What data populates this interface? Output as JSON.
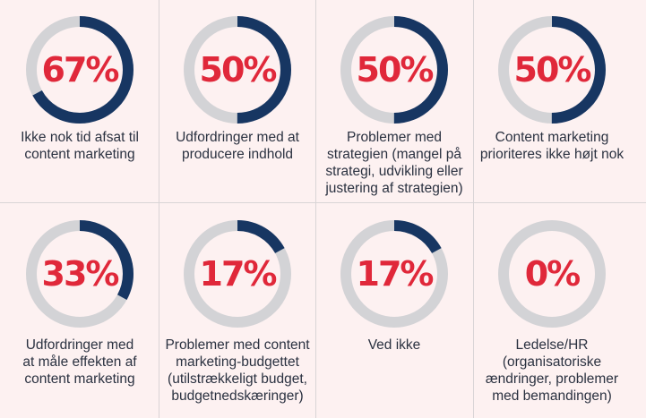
{
  "colors": {
    "track": "#d3d3d6",
    "progress": "#173662",
    "percent_text": "#e0283a",
    "label_text": "#2a3140",
    "background": "#fdf1f1"
  },
  "chart_data": {
    "type": "donut-grid",
    "items": [
      {
        "value": 67,
        "value_label": "67%",
        "label": "Ikke nok tid afsat til\ncontent marketing"
      },
      {
        "value": 50,
        "value_label": "50%",
        "label": "Udfordringer med at\nproducere indhold"
      },
      {
        "value": 50,
        "value_label": "50%",
        "label": "Problemer med\nstrategien (mangel på\nstrategi, udvikling eller\njustering af strategien)"
      },
      {
        "value": 50,
        "value_label": "50%",
        "label": "Content marketing\nprioriteres ikke højt nok"
      },
      {
        "value": 33,
        "value_label": "33%",
        "label": "Udfordringer med\nat måle effekten af\ncontent marketing"
      },
      {
        "value": 17,
        "value_label": "17%",
        "label": "Problemer med content\nmarketing-budgettet\n(utilstrækkeligt budget,\nbudgetnedskæringer)"
      },
      {
        "value": 17,
        "value_label": "17%",
        "label": "Ved ikke"
      },
      {
        "value": 0,
        "value_label": "0%",
        "label": "Ledelse/HR\n(organisatoriske\nændringer, problemer\nmed bemandingen)"
      }
    ]
  }
}
